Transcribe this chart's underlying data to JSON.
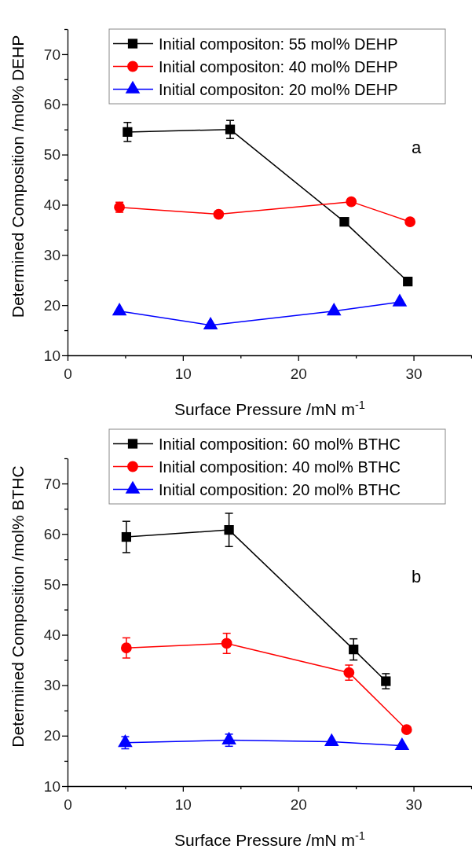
{
  "chart_data": [
    {
      "type": "line",
      "xlabel": "Surface Pressure /mN m$^{-1}$",
      "ylabel": "Determined Composition /mol% DEHP",
      "annotations": [
        "a"
      ],
      "xlim": [
        0,
        35
      ],
      "ylim": [
        10,
        75
      ],
      "xticks": [
        0,
        {
          "value": 5,
          "label": null
        },
        10,
        {
          "value": 15,
          "label": null
        },
        20,
        {
          "value": 25,
          "label": null
        },
        30,
        {
          "value": 35,
          "label": null
        }
      ],
      "yticks": [
        10,
        {
          "value": 15,
          "label": null
        },
        20,
        {
          "value": 25,
          "label": null
        },
        30,
        {
          "value": 35,
          "label": null
        },
        40,
        {
          "value": 45,
          "label": null
        },
        50,
        {
          "value": 55,
          "label": null
        },
        60,
        {
          "value": 65,
          "label": null
        },
        70,
        {
          "value": 75,
          "label": null
        }
      ],
      "legend": "top right",
      "line_style": "solid",
      "grid": false,
      "series": [
        {
          "name": "Initial compositon: 55 mol% DEHP",
          "color": "#000000",
          "marker": "square",
          "x": [
            5.2,
            14.1,
            24,
            29.5
          ],
          "values": [
            54.5,
            55,
            36.6,
            24.7
          ],
          "errors": [
            1.9,
            1.8,
            null,
            null
          ]
        },
        {
          "name": "Initial compositon: 40 mol% DEHP",
          "color": "#ff0000",
          "marker": "circle",
          "x": [
            4.5,
            13.1,
            24.6,
            29.7
          ],
          "values": [
            39.5,
            38.1,
            40.6,
            36.6
          ],
          "errors": [
            1,
            null,
            null,
            null
          ]
        },
        {
          "name": "Initial compositon: 20 mol% DEHP",
          "color": "#0000ff",
          "marker": "triangle",
          "x": [
            4.5,
            12.4,
            23.1,
            28.8
          ],
          "values": [
            18.8,
            16,
            18.8,
            20.6
          ]
        }
      ]
    },
    {
      "type": "line",
      "xlabel": "Surface Pressure /mN m$^{-1}$",
      "ylabel": "Determined Composition /mol% BTHC",
      "annotations": [
        "b"
      ],
      "xlim": [
        0,
        35
      ],
      "ylim": [
        10,
        75
      ],
      "xticks": [
        0,
        {
          "value": 5,
          "label": null
        },
        10,
        {
          "value": 15,
          "label": null
        },
        20,
        {
          "value": 25,
          "label": null
        },
        30,
        {
          "value": 35,
          "label": null
        }
      ],
      "yticks": [
        10,
        {
          "value": 15,
          "label": null
        },
        20,
        {
          "value": 25,
          "label": null
        },
        30,
        {
          "value": 35,
          "label": null
        },
        40,
        {
          "value": 45,
          "label": null
        },
        50,
        {
          "value": 55,
          "label": null
        },
        60,
        {
          "value": 65,
          "label": null
        },
        70,
        {
          "value": 75,
          "label": null
        }
      ],
      "legend": "top right",
      "line_style": "solid",
      "grid": false,
      "series": [
        {
          "name": "Initial composition: 60 mol% BTHC",
          "color": "#000000",
          "marker": "square",
          "x": [
            5.1,
            14,
            24.8,
            27.6
          ],
          "values": [
            59.4,
            60.8,
            37.1,
            30.8
          ],
          "errors": [
            3.1,
            3.3,
            2.1,
            1.5
          ]
        },
        {
          "name": "Initial composition: 40 mol% BTHC",
          "color": "#ff0000",
          "marker": "circle",
          "x": [
            5.1,
            13.8,
            24.4,
            29.4
          ],
          "values": [
            37.4,
            38.3,
            32.5,
            21.2
          ],
          "errors": [
            2,
            2,
            1.5,
            null
          ]
        },
        {
          "name": "Initial composition: 20 mol% BTHC",
          "color": "#0000ff",
          "marker": "triangle",
          "x": [
            5,
            14,
            22.9,
            29
          ],
          "values": [
            18.6,
            19.1,
            18.8,
            18
          ],
          "errors": [
            1.2,
            1.2,
            null,
            null
          ]
        }
      ]
    }
  ]
}
